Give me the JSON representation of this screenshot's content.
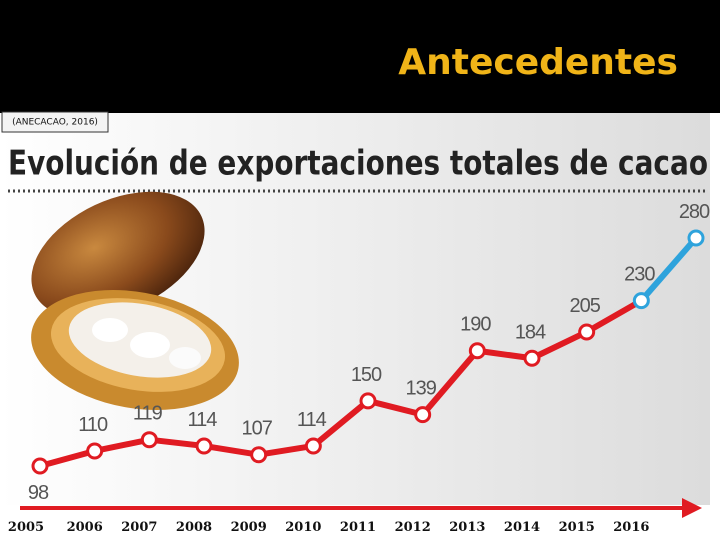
{
  "header": {
    "title": "Antecedentes",
    "source": "(ANECACAO, 2016)"
  },
  "chart_data": {
    "type": "line",
    "title": "Evolución de exportaciones totales de cacao",
    "categories": [
      "2005",
      "2006",
      "2007",
      "2008",
      "2009",
      "2010",
      "2011",
      "2012",
      "2013",
      "2014",
      "2015",
      "2016",
      null
    ],
    "values": [
      98,
      110,
      119,
      114,
      107,
      114,
      150,
      139,
      190,
      184,
      205,
      230,
      280
    ],
    "color": "#e01b22",
    "last_segment_color": "#2ea3dc"
  }
}
